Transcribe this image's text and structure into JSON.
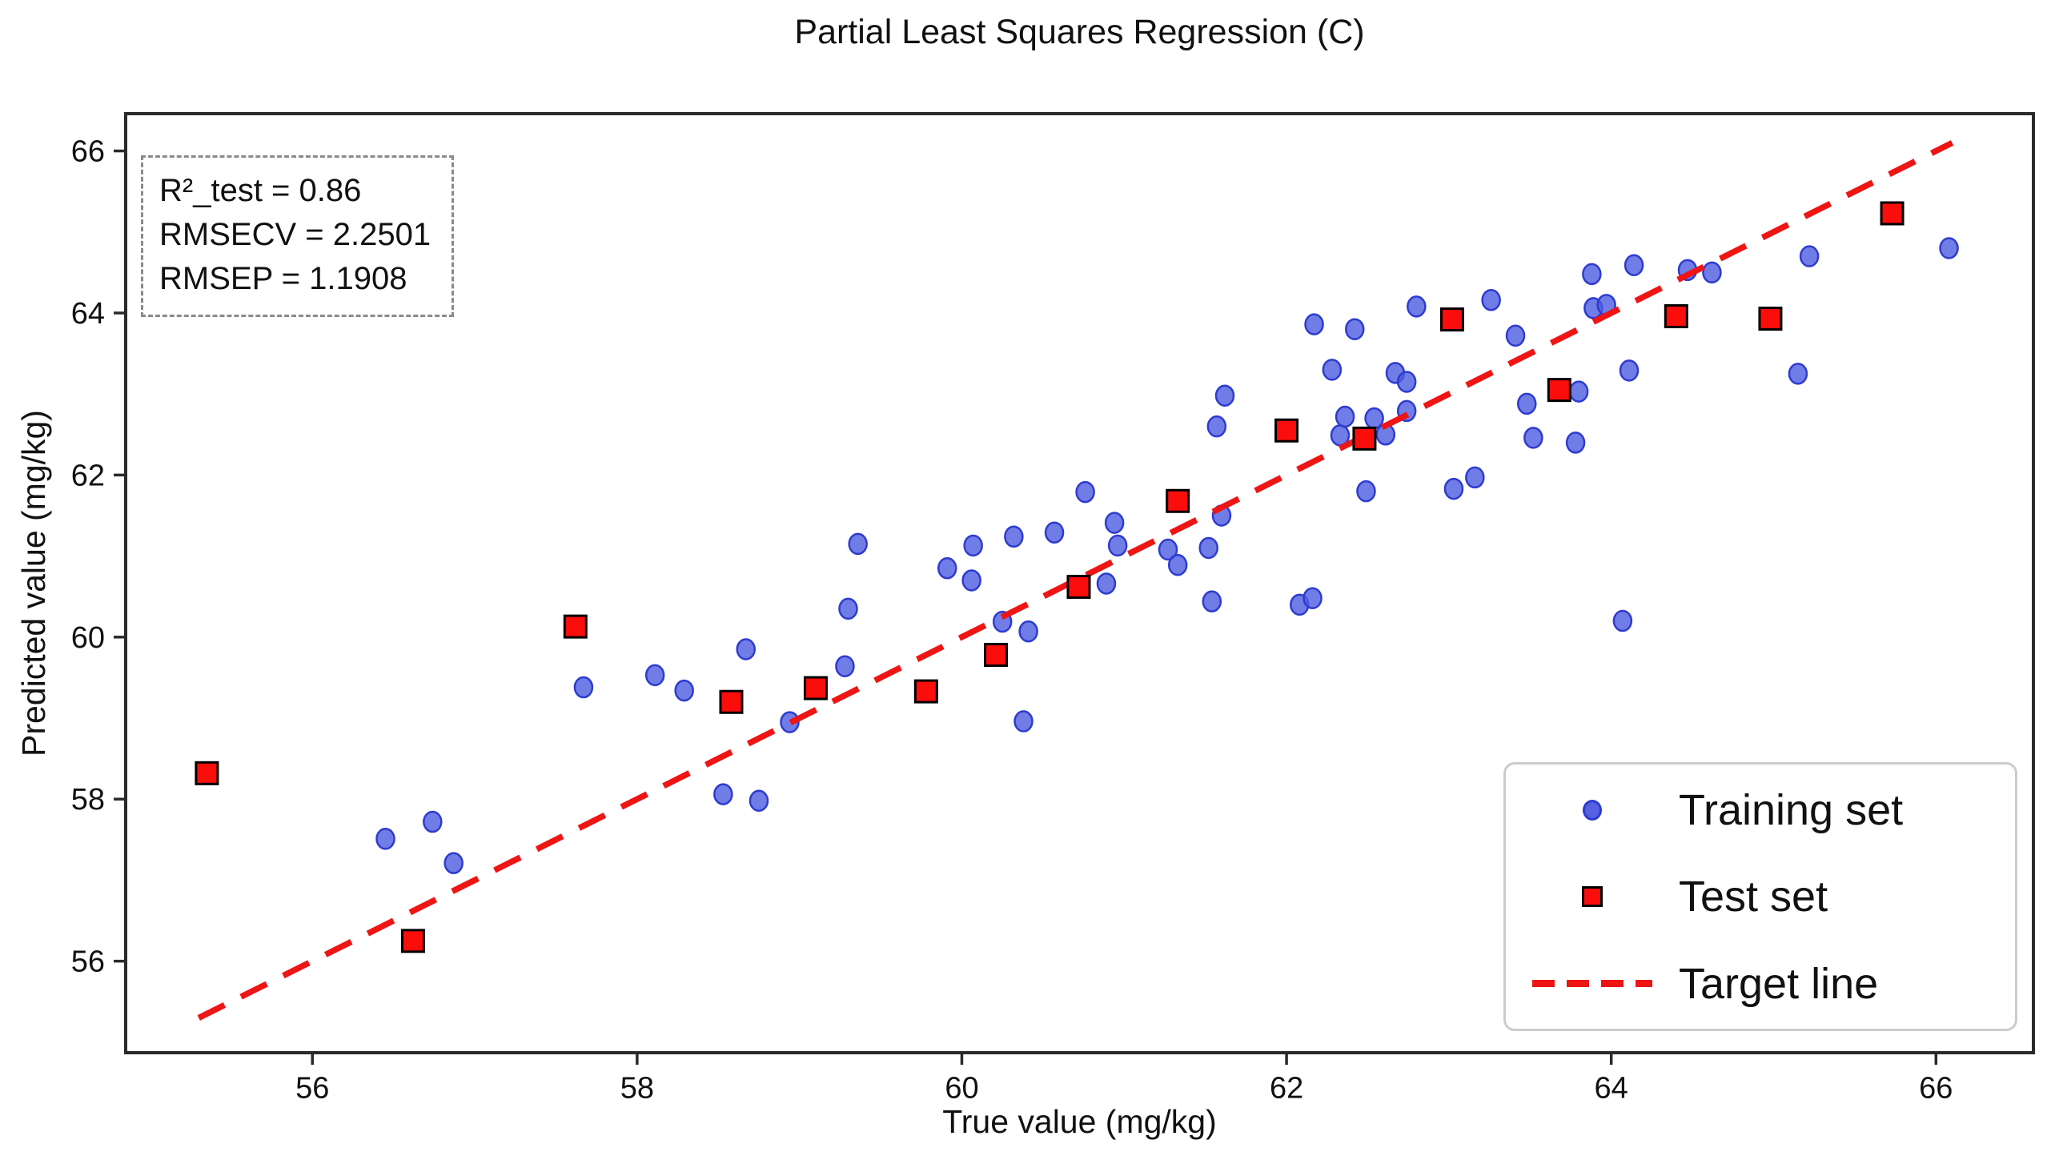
{
  "chart": {
    "title": "Partial Least Squares Regression (C)",
    "xlabel": "True value (mg/kg)",
    "ylabel": "Predicted value (mg/kg)"
  },
  "stats": {
    "lines": [
      "R²_test = 0.86",
      "RMSECV = 2.2501",
      "RMSEP = 1.1908"
    ]
  },
  "legend": {
    "items": [
      {
        "label": "Training set",
        "marker": "circle"
      },
      {
        "label": "Test set",
        "marker": "square"
      },
      {
        "label": "Target line",
        "marker": "dashed-line"
      }
    ],
    "position": "lower right"
  },
  "colors": {
    "training_fill": "#4d5ce0",
    "training_edge": "#2e3bcf",
    "test_fill": "#fb0d0c",
    "test_edge": "#000000",
    "target_line": "#ee1515",
    "spine": "#2a2a2a",
    "text": "#111111"
  },
  "chart_data": {
    "type": "scatter",
    "title": "Partial Least Squares Regression (C)",
    "xlabel": "True value (mg/kg)",
    "ylabel": "Predicted value (mg/kg)",
    "xlim": [
      54.85,
      66.6
    ],
    "ylim": [
      54.87,
      66.46
    ],
    "xticks": [
      56,
      58,
      60,
      62,
      64,
      66
    ],
    "yticks": [
      56,
      58,
      60,
      62,
      64,
      66
    ],
    "grid": false,
    "legend_position": "lower right",
    "annotations": [
      "R²_test = 0.86",
      "RMSECV = 2.2501",
      "RMSEP = 1.1908"
    ],
    "series": [
      {
        "name": "Training set",
        "marker": "circle",
        "color": "#4d5ce0",
        "points": [
          [
            56.45,
            57.51
          ],
          [
            56.74,
            57.72
          ],
          [
            56.87,
            57.21
          ],
          [
            57.67,
            59.38
          ],
          [
            58.11,
            59.53
          ],
          [
            58.29,
            59.34
          ],
          [
            58.67,
            59.85
          ],
          [
            58.53,
            58.06
          ],
          [
            58.75,
            57.98
          ],
          [
            58.94,
            58.95
          ],
          [
            59.28,
            59.64
          ],
          [
            59.3,
            60.35
          ],
          [
            59.36,
            61.15
          ],
          [
            59.91,
            60.85
          ],
          [
            60.06,
            60.7
          ],
          [
            60.07,
            61.13
          ],
          [
            60.25,
            60.19
          ],
          [
            60.41,
            60.07
          ],
          [
            60.38,
            58.96
          ],
          [
            60.32,
            61.24
          ],
          [
            60.57,
            61.29
          ],
          [
            60.76,
            61.79
          ],
          [
            60.89,
            60.66
          ],
          [
            60.94,
            61.41
          ],
          [
            60.96,
            61.13
          ],
          [
            61.27,
            61.08
          ],
          [
            61.33,
            60.89
          ],
          [
            61.52,
            61.1
          ],
          [
            61.54,
            60.44
          ],
          [
            61.6,
            61.5
          ],
          [
            62.08,
            60.4
          ],
          [
            62.16,
            60.48
          ],
          [
            61.57,
            62.6
          ],
          [
            61.62,
            62.98
          ],
          [
            62.17,
            63.86
          ],
          [
            62.42,
            63.8
          ],
          [
            62.28,
            63.3
          ],
          [
            62.67,
            63.26
          ],
          [
            62.74,
            63.15
          ],
          [
            62.8,
            64.08
          ],
          [
            63.26,
            64.16
          ],
          [
            63.41,
            63.72
          ],
          [
            63.88,
            64.48
          ],
          [
            63.89,
            64.06
          ],
          [
            63.97,
            64.1
          ],
          [
            62.33,
            62.49
          ],
          [
            62.36,
            62.72
          ],
          [
            62.54,
            62.7
          ],
          [
            62.61,
            62.5
          ],
          [
            62.74,
            62.79
          ],
          [
            62.49,
            61.8
          ],
          [
            63.03,
            61.83
          ],
          [
            63.16,
            61.97
          ],
          [
            63.48,
            62.88
          ],
          [
            63.52,
            62.46
          ],
          [
            63.78,
            62.4
          ],
          [
            63.8,
            63.03
          ],
          [
            64.11,
            63.29
          ],
          [
            64.07,
            60.2
          ],
          [
            64.14,
            64.59
          ],
          [
            64.47,
            64.53
          ],
          [
            64.62,
            64.5
          ],
          [
            65.22,
            64.7
          ],
          [
            65.15,
            63.25
          ],
          [
            66.08,
            64.8
          ]
        ]
      },
      {
        "name": "Test set",
        "marker": "square",
        "color": "#fb0d0c",
        "points": [
          [
            55.35,
            58.32
          ],
          [
            56.62,
            56.25
          ],
          [
            57.62,
            60.13
          ],
          [
            58.58,
            59.2
          ],
          [
            59.1,
            59.37
          ],
          [
            59.78,
            59.33
          ],
          [
            60.21,
            59.78
          ],
          [
            60.72,
            60.62
          ],
          [
            61.33,
            61.68
          ],
          [
            62.0,
            62.55
          ],
          [
            62.48,
            62.45
          ],
          [
            63.02,
            63.92
          ],
          [
            63.68,
            63.05
          ],
          [
            64.4,
            63.96
          ],
          [
            64.98,
            63.93
          ],
          [
            65.73,
            65.23
          ]
        ]
      }
    ],
    "target_line": {
      "name": "Target line",
      "style": "dashed",
      "color": "#ee1515",
      "x": [
        55.3,
        66.1
      ],
      "y": [
        55.3,
        66.1
      ]
    }
  }
}
